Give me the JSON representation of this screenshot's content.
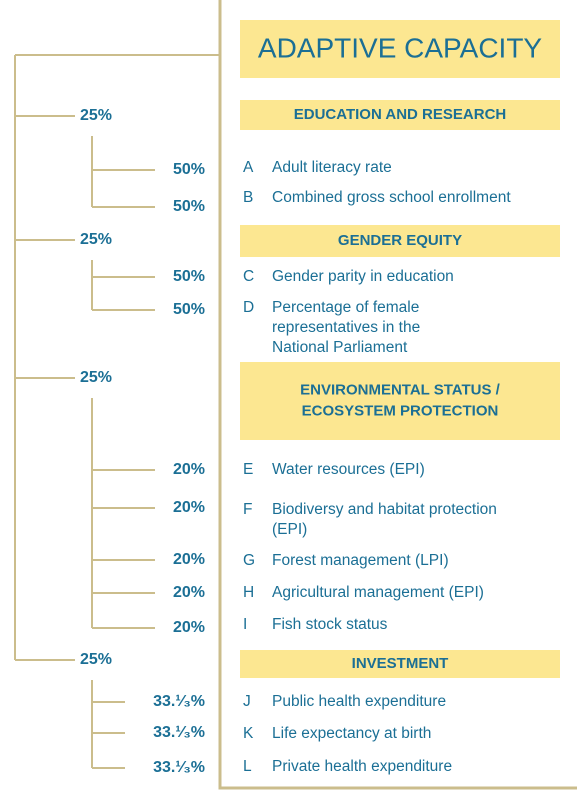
{
  "title": "ADAPTIVE CAPACITY",
  "groups": [
    {
      "weight": "25%",
      "heading": [
        "EDUCATION AND RESEARCH"
      ],
      "items": [
        {
          "weight": "50%",
          "letter": "A",
          "lines": [
            "Adult literacy rate"
          ]
        },
        {
          "weight": "50%",
          "letter": "B",
          "lines": [
            "Combined gross school enrollment"
          ]
        }
      ]
    },
    {
      "weight": "25%",
      "heading": [
        "GENDER EQUITY"
      ],
      "items": [
        {
          "weight": "50%",
          "letter": "C",
          "lines": [
            "Gender parity in education"
          ]
        },
        {
          "weight": "50%",
          "letter": "D",
          "lines": [
            "Percentage of female",
            "representatives in the",
            "National Parliament"
          ]
        }
      ]
    },
    {
      "weight": "25%",
      "heading": [
        "ENVIRONMENTAL STATUS /",
        "ECOSYSTEM PROTECTION"
      ],
      "items": [
        {
          "weight": "20%",
          "letter": "E",
          "lines": [
            "Water resources (EPI)"
          ]
        },
        {
          "weight": "20%",
          "letter": "F",
          "lines": [
            "Biodiversy and habitat protection",
            "(EPI)"
          ]
        },
        {
          "weight": "20%",
          "letter": "G",
          "lines": [
            "Forest management (LPI)"
          ]
        },
        {
          "weight": "20%",
          "letter": "H",
          "lines": [
            "Agricultural management (EPI)"
          ]
        },
        {
          "weight": "20%",
          "letter": "I",
          "lines": [
            "Fish stock status"
          ]
        }
      ]
    },
    {
      "weight": "25%",
      "heading": [
        "INVESTMENT"
      ],
      "items": [
        {
          "weight": "33.¹⁄₃%",
          "letter": "J",
          "lines": [
            "Public health expenditure"
          ]
        },
        {
          "weight": "33.¹⁄₃%",
          "letter": "K",
          "lines": [
            "Life expectancy at birth"
          ]
        },
        {
          "weight": "33.¹⁄₃%",
          "letter": "L",
          "lines": [
            "Private health expenditure"
          ]
        }
      ]
    }
  ]
}
